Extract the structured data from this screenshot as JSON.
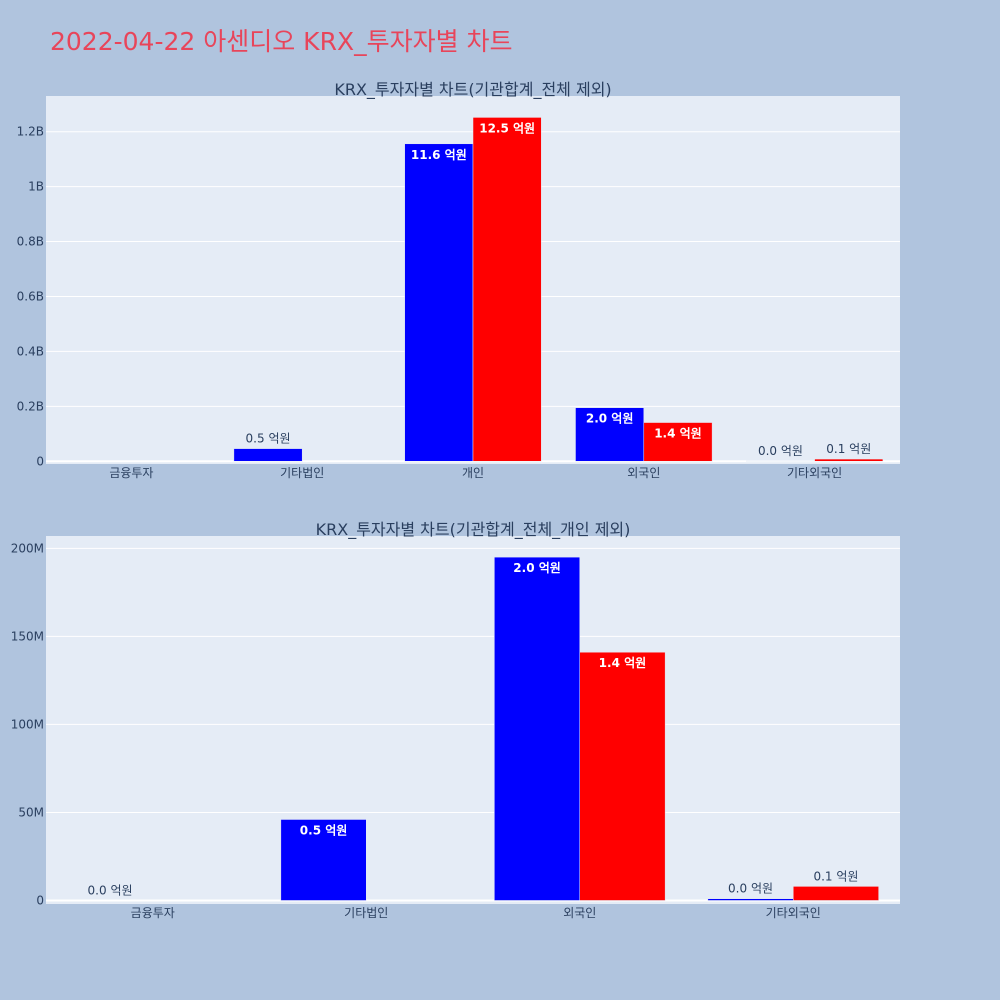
{
  "page_title": "2022-04-22 아센디오 KRX_투자자별 차트",
  "colors": {
    "background": "#b0c4de",
    "plot_bg": "#e5ecf6",
    "title": "#e8455a",
    "series_a": "#0000ff",
    "series_b": "#ff0000"
  },
  "chart_data": [
    {
      "type": "bar",
      "title": "KRX_투자자별 차트(기관합계_전체 제외)",
      "categories": [
        "금융투자",
        "기타법인",
        "개인",
        "외국인",
        "기타외국인"
      ],
      "ylim": [
        -10000000,
        1330000000
      ],
      "yticks": [
        0,
        200000000,
        400000000,
        600000000,
        800000000,
        1000000000,
        1200000000
      ],
      "ytick_labels": [
        "0",
        "0.2B",
        "0.4B",
        "0.6B",
        "0.8B",
        "1B",
        "1.2B"
      ],
      "grid": true,
      "legend": "none",
      "series": [
        {
          "values": [
            0,
            46000000,
            1156000000,
            195000000,
            1000000
          ],
          "labels": [
            "",
            "0.5 억원",
            "11.6 억원",
            "2.0 억원",
            "0.0 억원"
          ]
        },
        {
          "values": [
            0,
            0,
            1252000000,
            141000000,
            8000000
          ],
          "labels": [
            "",
            "",
            "12.5 억원",
            "1.4 억원",
            "0.1 억원"
          ]
        }
      ]
    },
    {
      "type": "bar",
      "title": "KRX_투자자별 차트(기관합계_전체_개인 제외)",
      "categories": [
        "금융투자",
        "기타법인",
        "외국인",
        "기타외국인"
      ],
      "ylim": [
        -2000000,
        207000000
      ],
      "yticks": [
        0,
        50000000,
        100000000,
        150000000,
        200000000
      ],
      "ytick_labels": [
        "0",
        "50M",
        "100M",
        "150M",
        "200M"
      ],
      "grid": true,
      "legend": "none",
      "series": [
        {
          "values": [
            0,
            46000000,
            195000000,
            1000000
          ],
          "labels": [
            "0.0 억원",
            "0.5 억원",
            "2.0 억원",
            "0.0 억원"
          ]
        },
        {
          "values": [
            0,
            0,
            141000000,
            8000000
          ],
          "labels": [
            "",
            "",
            "1.4 억원",
            "0.1 억원"
          ]
        }
      ]
    }
  ]
}
